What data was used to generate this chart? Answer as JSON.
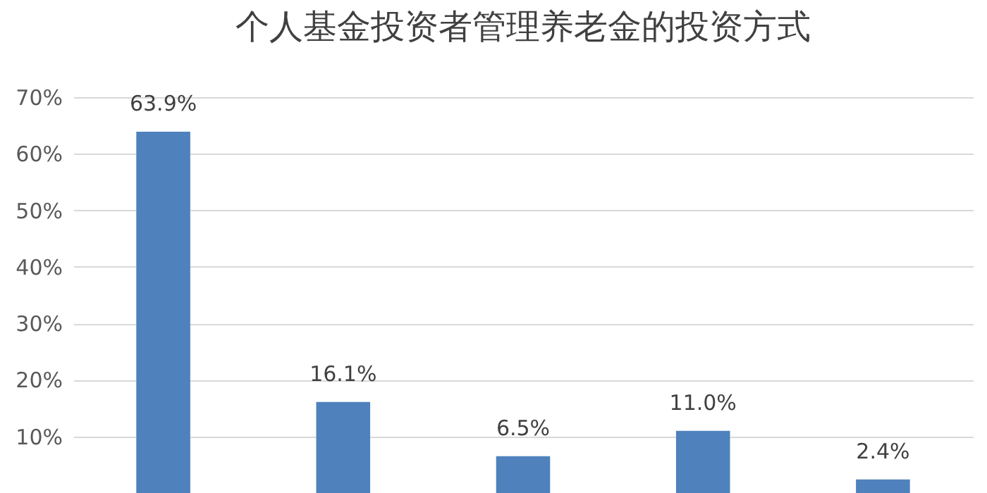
{
  "chart_data": {
    "type": "bar",
    "title": "个人基金投资者管理养老金的投资方式",
    "categories": [
      null,
      null,
      null,
      null,
      null
    ],
    "values": [
      63.9,
      16.1,
      6.5,
      11.0,
      2.4
    ],
    "value_labels": [
      "63.9%",
      "16.1%",
      "6.5%",
      "11.0%",
      "2.4%"
    ],
    "color": "#4f81bd",
    "ylim": [
      0,
      70
    ],
    "yticks": [
      {
        "value": 10,
        "label": "10%"
      },
      {
        "value": 20,
        "label": "20%"
      },
      {
        "value": 30,
        "label": "30%"
      },
      {
        "value": 40,
        "label": "40%"
      },
      {
        "value": 50,
        "label": "50%"
      },
      {
        "value": 60,
        "label": "60%"
      },
      {
        "value": 70,
        "label": "70%"
      }
    ],
    "grid": "y",
    "tick_labels": "y"
  }
}
